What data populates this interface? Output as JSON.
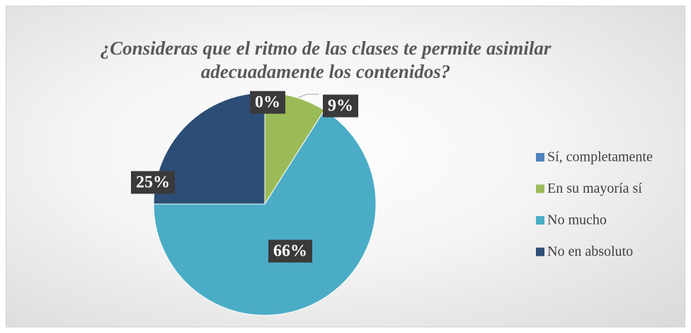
{
  "chart_data": {
    "type": "pie",
    "title": "¿Consideras que el ritmo de las clases te permite asimilar adecuadamente los contenidos?",
    "categories": [
      "Sí, completamente",
      "En su mayoría sí",
      "No mucho",
      "No en absoluto"
    ],
    "values": [
      0,
      9,
      66,
      25
    ],
    "value_labels": [
      "0%",
      "9%",
      "66%",
      "25%"
    ],
    "colors": [
      "#4f81bd",
      "#9bbb59",
      "#4bacc6",
      "#2c4d75"
    ],
    "legend": "right"
  }
}
